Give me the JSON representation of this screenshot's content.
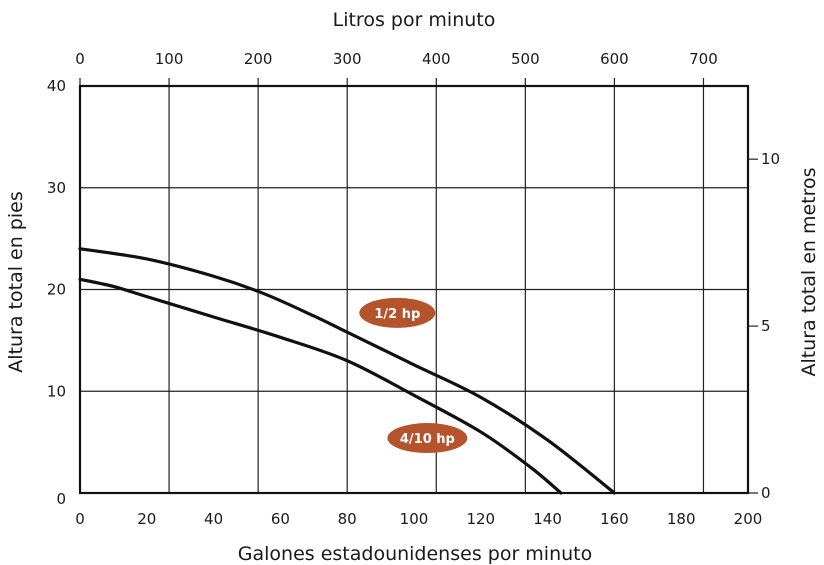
{
  "chart_data": {
    "type": "line",
    "x_bottom": {
      "label": "Galones estadounidenses por minuto",
      "range": [
        0,
        200
      ],
      "ticks": [
        0,
        20,
        40,
        60,
        80,
        100,
        120,
        140,
        160,
        180,
        200
      ]
    },
    "x_top": {
      "label": "Litros por minuto",
      "ticks": [
        0,
        100,
        200,
        300,
        400,
        500,
        600,
        700
      ]
    },
    "y_left": {
      "label": "Altura total en pies",
      "range": [
        0,
        40
      ],
      "ticks": [
        0,
        10,
        20,
        30,
        40
      ]
    },
    "y_right": {
      "label": "Altura total en metros",
      "ticks": [
        0,
        5,
        10
      ]
    },
    "grid": true,
    "series": [
      {
        "name": "1/2 hp",
        "x": [
          0,
          20,
          40,
          55,
          70,
          80,
          100,
          120,
          140,
          160
        ],
        "y": [
          24,
          23,
          21.3,
          19.6,
          17.4,
          15.8,
          12.6,
          9.4,
          5.2,
          0
        ]
      },
      {
        "name": "4/10 hp",
        "x": [
          0,
          10,
          20,
          40,
          60,
          80,
          100,
          120,
          135,
          144
        ],
        "y": [
          21,
          20.3,
          19.3,
          17.3,
          15.3,
          13,
          9.6,
          6,
          2.5,
          0
        ]
      }
    ]
  },
  "colors": {
    "line": "#111111",
    "grid": "#222222",
    "badge": "#b5532c"
  }
}
